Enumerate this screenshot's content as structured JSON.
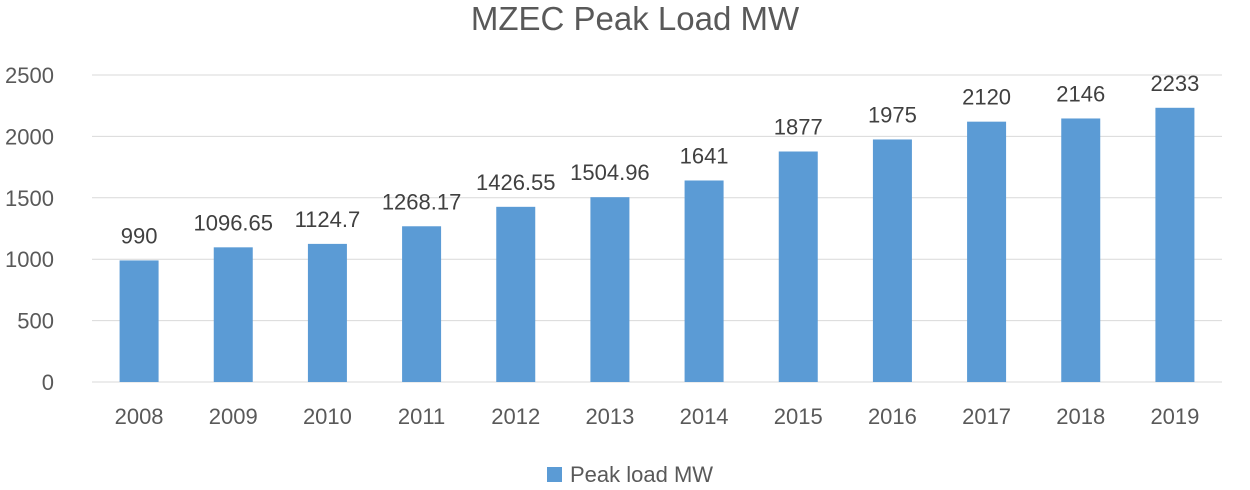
{
  "chart_data": {
    "type": "bar",
    "title": "MZEC Peak Load MW",
    "xlabel": "",
    "ylabel": "",
    "categories": [
      "2008",
      "2009",
      "2010",
      "2011",
      "2012",
      "2013",
      "2014",
      "2015",
      "2016",
      "2017",
      "2018",
      "2019"
    ],
    "series": [
      {
        "name": "Peak load MW",
        "values": [
          990,
          1096.65,
          1124.7,
          1268.17,
          1426.55,
          1504.96,
          1641,
          1877,
          1975,
          2120,
          2146,
          2233
        ],
        "data_labels": [
          "990",
          "1096.65",
          "1124.7",
          "1268.17",
          "1426.55",
          "1504.96",
          "1641",
          "1877",
          "1975",
          "2120",
          "2146",
          "2233"
        ]
      }
    ],
    "ylim": [
      0,
      2500
    ],
    "yticks": [
      0,
      500,
      1000,
      1500,
      2000,
      2500
    ],
    "grid": "horizontal",
    "legend": "bottom-center",
    "colors": {
      "bar": "#5b9bd5",
      "grid": "#d9d9d9",
      "text": "#595959"
    }
  }
}
